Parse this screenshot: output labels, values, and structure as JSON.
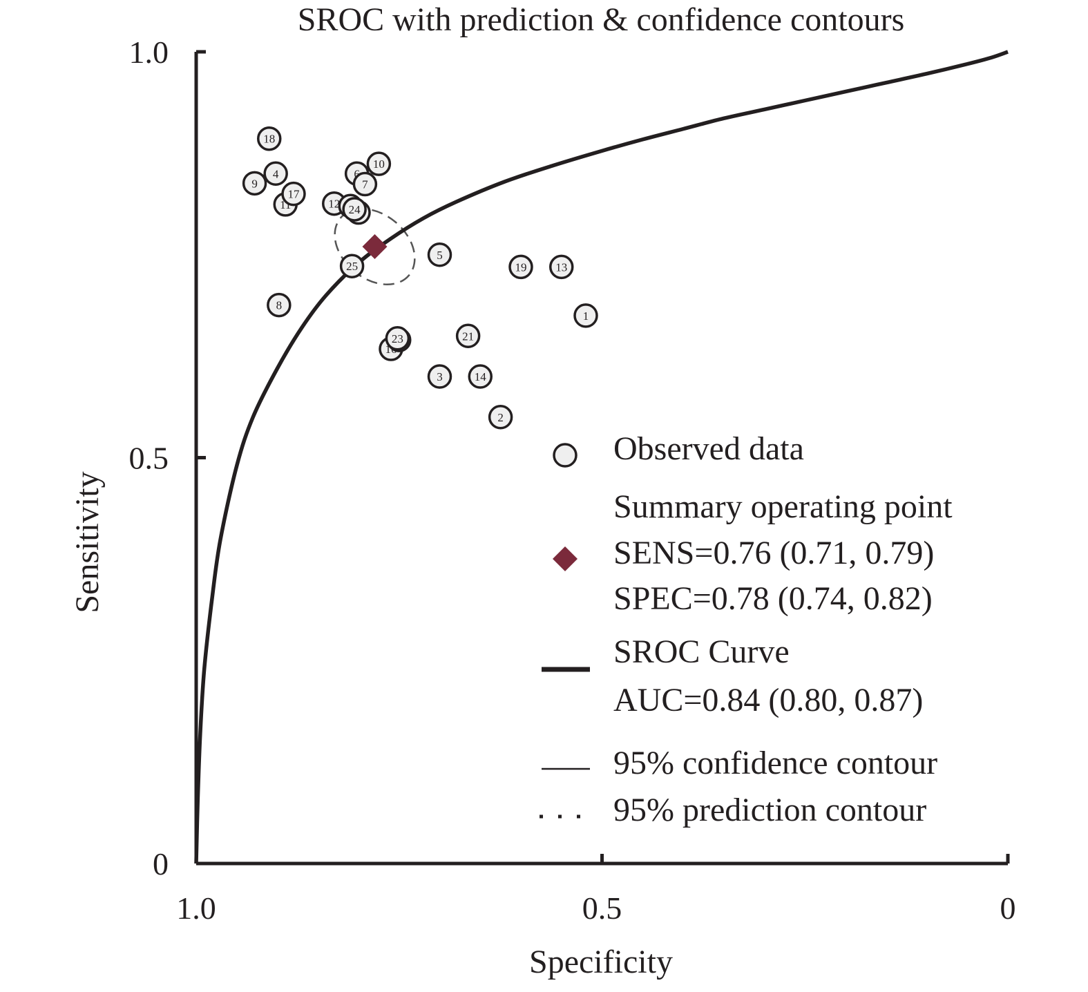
{
  "chart_data": {
    "type": "scatter",
    "title": "SROC with prediction & confidence contours",
    "xlabel": "Specificity",
    "ylabel": "Sensitivity",
    "x_reversed": true,
    "xlim": [
      1.0,
      0
    ],
    "ylim": [
      0,
      1.0
    ],
    "x_ticks": [
      {
        "value": 1.0,
        "label": "1.0"
      },
      {
        "value": 0.5,
        "label": "0.5"
      },
      {
        "value": 0,
        "label": "0"
      }
    ],
    "y_ticks": [
      {
        "value": 0,
        "label": "0"
      },
      {
        "value": 0.5,
        "label": "0.5"
      },
      {
        "value": 1.0,
        "label": "1.0"
      }
    ],
    "grid": false,
    "points": [
      {
        "id": "1",
        "spec": 0.52,
        "sens": 0.675
      },
      {
        "id": "2",
        "spec": 0.625,
        "sens": 0.55
      },
      {
        "id": "3",
        "spec": 0.7,
        "sens": 0.6
      },
      {
        "id": "4",
        "spec": 0.902,
        "sens": 0.85
      },
      {
        "id": "5",
        "spec": 0.7,
        "sens": 0.75
      },
      {
        "id": "6",
        "spec": 0.802,
        "sens": 0.85
      },
      {
        "id": "7",
        "spec": 0.792,
        "sens": 0.837
      },
      {
        "id": "8",
        "spec": 0.898,
        "sens": 0.688
      },
      {
        "id": "9",
        "spec": 0.928,
        "sens": 0.838
      },
      {
        "id": "10",
        "spec": 0.775,
        "sens": 0.862
      },
      {
        "id": "11",
        "spec": 0.89,
        "sens": 0.812
      },
      {
        "id": "12",
        "spec": 0.83,
        "sens": 0.813
      },
      {
        "id": "13",
        "spec": 0.55,
        "sens": 0.735
      },
      {
        "id": "14",
        "spec": 0.65,
        "sens": 0.6
      },
      {
        "id": "15",
        "spec": 0.81,
        "sens": 0.81
      },
      {
        "id": "16",
        "spec": 0.76,
        "sens": 0.634
      },
      {
        "id": "17",
        "spec": 0.88,
        "sens": 0.825
      },
      {
        "id": "18",
        "spec": 0.91,
        "sens": 0.893
      },
      {
        "id": "19",
        "spec": 0.6,
        "sens": 0.735
      },
      {
        "id": "20",
        "spec": 0.8,
        "sens": 0.802
      },
      {
        "id": "21",
        "spec": 0.665,
        "sens": 0.65
      },
      {
        "id": "22",
        "spec": 0.75,
        "sens": 0.645
      },
      {
        "id": "23",
        "spec": 0.752,
        "sens": 0.647
      },
      {
        "id": "24",
        "spec": 0.805,
        "sens": 0.806
      },
      {
        "id": "25",
        "spec": 0.808,
        "sens": 0.736
      }
    ],
    "summary_point": {
      "spec": 0.78,
      "sens": 0.76
    },
    "sroc_curve": {
      "description_note": "",
      "spec": [
        1.0,
        0.998,
        0.995,
        0.99,
        0.98,
        0.97,
        0.95,
        0.93,
        0.9,
        0.87,
        0.84,
        0.8,
        0.76,
        0.72,
        0.68,
        0.62,
        0.56,
        0.5,
        0.45,
        0.4,
        0.35,
        0.3,
        0.25,
        0.2,
        0.15,
        0.1,
        0.05,
        0.02,
        0.0
      ],
      "sens": [
        0.0,
        0.08,
        0.16,
        0.24,
        0.33,
        0.4,
        0.49,
        0.55,
        0.61,
        0.66,
        0.7,
        0.74,
        0.77,
        0.795,
        0.815,
        0.84,
        0.86,
        0.878,
        0.892,
        0.905,
        0.918,
        0.929,
        0.94,
        0.951,
        0.962,
        0.973,
        0.985,
        0.993,
        1.0
      ]
    },
    "confidence_contour": {
      "center_spec": 0.78,
      "center_sens": 0.76,
      "spec_halfwidth": 0.055,
      "sens_halfwidth": 0.055,
      "tilt_deg": 40
    },
    "legend": {
      "placement": "bottom-right",
      "observed_label": "Observed data",
      "summary_title": "Summary operating point",
      "summary_sens": "SENS=0.76 (0.71, 0.79)",
      "summary_spec": "SPEC=0.78 (0.74, 0.82)",
      "sroc_title": "SROC Curve",
      "sroc_auc": "AUC=0.84 (0.80, 0.87)",
      "confidence_label": "95% confidence contour",
      "prediction_label": "95% prediction contour"
    },
    "colors": {
      "axis": "#231f20",
      "curve": "#231f20",
      "point_fill": "#efefef",
      "summary": "#7b2a3b",
      "contour": "#555555"
    }
  }
}
